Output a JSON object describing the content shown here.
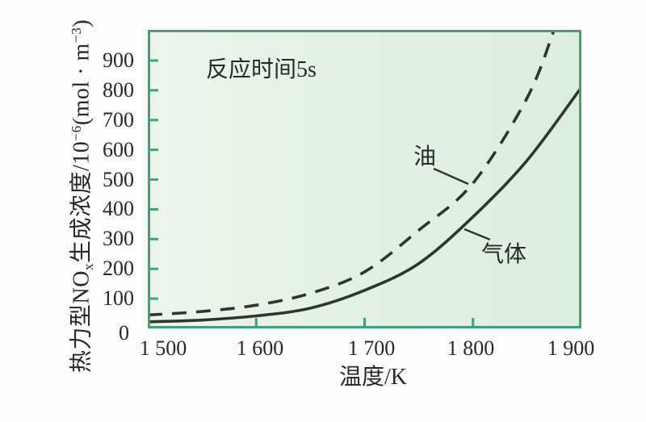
{
  "chart": {
    "annotation": "反应时间5s",
    "xlabel": "温度/K",
    "ylabel_parts": {
      "p1": "热力型NO",
      "sub1": "x",
      "p2": "生成浓度/10",
      "sup1": "−6",
      "p3": "(mol · m",
      "sup2": "−3",
      "p4": ")"
    }
  },
  "chart_data": {
    "type": "line",
    "title": "",
    "annotation": "反应时间5s",
    "xlabel": "温度/K",
    "ylabel": "热力型NOx生成浓度/10−6(mol·m−3)",
    "xlim": [
      1500,
      1900
    ],
    "ylim": [
      0,
      1000
    ],
    "grid": false,
    "legend_position": "inline-curve-labels",
    "x_ticks": [
      1500,
      1600,
      1700,
      1800,
      1900
    ],
    "x_tick_labels": [
      "1 500",
      "1 600",
      "1 700",
      "1 800",
      "1 900"
    ],
    "y_ticks": [
      0,
      100,
      200,
      300,
      400,
      500,
      600,
      700,
      800,
      900
    ],
    "y_tick_labels": [
      "0",
      "100",
      "200",
      "300",
      "400",
      "500",
      "600",
      "700",
      "800",
      "900"
    ],
    "series": [
      {
        "name": "油",
        "style": "dashed",
        "x": [
          1500,
          1550,
          1600,
          1650,
          1700,
          1750,
          1800,
          1850,
          1875
        ],
        "values": [
          45,
          57,
          78,
          118,
          190,
          330,
          488,
          775,
          1005
        ]
      },
      {
        "name": "气体",
        "style": "solid",
        "x": [
          1500,
          1550,
          1600,
          1650,
          1700,
          1750,
          1800,
          1850,
          1900
        ],
        "values": [
          22,
          28,
          42,
          68,
          128,
          218,
          375,
          565,
          810
        ]
      }
    ],
    "colors": {
      "frame": "#3fa472",
      "plot_bg": "#e3f1e4",
      "curve": "#2d362f",
      "text": "#27292b"
    }
  }
}
